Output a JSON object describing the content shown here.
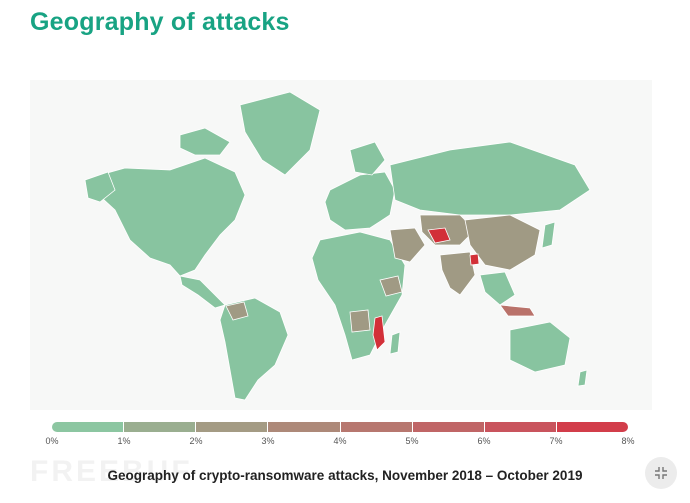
{
  "header": {
    "title": "Geography of attacks"
  },
  "map": {
    "caption": "Geography of crypto-ransomware attacks, November 2018 – October 2019"
  },
  "legend": {
    "ticks": [
      "0%",
      "1%",
      "2%",
      "3%",
      "4%",
      "5%",
      "6%",
      "7%",
      "8%"
    ],
    "colors": [
      "#8cc6a1",
      "#97b394",
      "#9fa18a",
      "#a8927f",
      "#b28577",
      "#bd6f6b",
      "#c65d62",
      "#cf4957",
      "#d83540"
    ]
  },
  "controls": {
    "collapse_icon": "collapse-icon"
  },
  "watermark": {
    "text": "FREEBUF"
  }
}
